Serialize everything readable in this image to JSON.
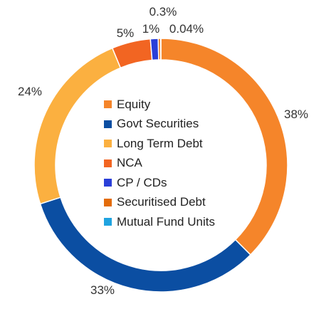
{
  "chart_data": {
    "type": "pie",
    "style": "donut",
    "legend_position": "center",
    "series": [
      {
        "name": "Equity",
        "value": 38,
        "label": "38%",
        "color": "#F5852A"
      },
      {
        "name": "Govt Securities",
        "value": 33,
        "label": "33%",
        "color": "#0B4EA2"
      },
      {
        "name": "Long Term Debt",
        "value": 24,
        "label": "24%",
        "color": "#FBB040"
      },
      {
        "name": "NCA",
        "value": 5,
        "label": "5%",
        "color": "#F26522"
      },
      {
        "name": "CP / CDs",
        "value": 1,
        "label": "1%",
        "color": "#2A3FD8"
      },
      {
        "name": "Securitised Debt",
        "value": 0.3,
        "label": "0.3%",
        "color": "#E36C0A"
      },
      {
        "name": "Mutual Fund Units",
        "value": 0.04,
        "label": "0.04%",
        "color": "#1FA3E0"
      }
    ]
  }
}
